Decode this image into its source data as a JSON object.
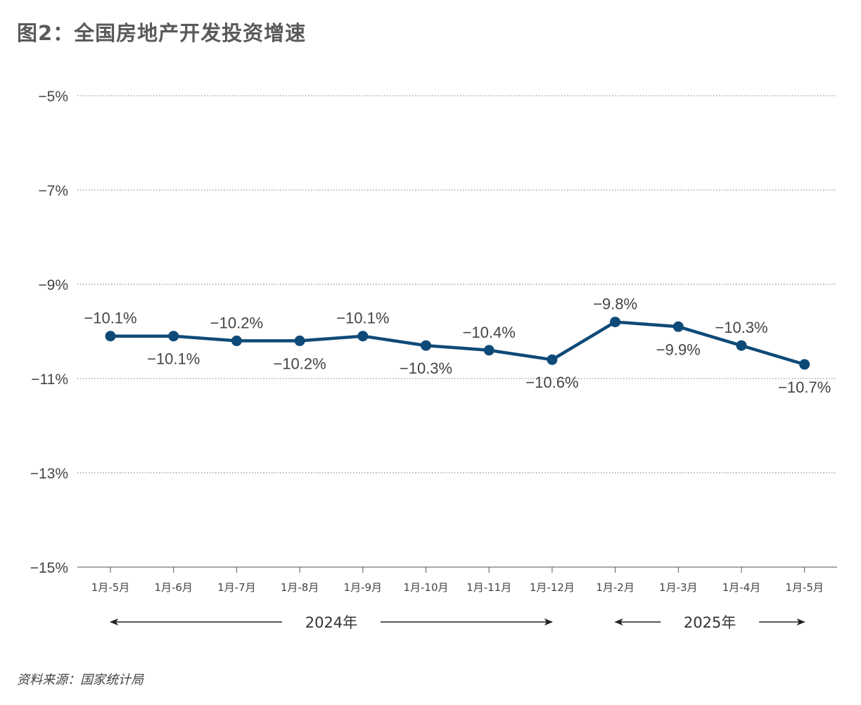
{
  "page_title": "图2：全国房地产开发投资增速",
  "source": "资料来源：国家统计局",
  "colors": {
    "line": "#0e4a78",
    "grid": "#666666",
    "text": "#444444"
  },
  "chart_data": {
    "type": "line",
    "title": "图2：全国房地产开发投资增速",
    "xlabel": "",
    "ylabel": "",
    "categories": [
      "1月-5月",
      "1月-6月",
      "1月-7月",
      "1月-8月",
      "1月-9月",
      "1月-10月",
      "1月-11月",
      "1月-12月",
      "1月-2月",
      "1月-3月",
      "1月-4月",
      "1月-5月"
    ],
    "series": [
      {
        "values": [
          -10.1,
          -10.1,
          -10.2,
          -10.2,
          -10.1,
          -10.3,
          -10.4,
          -10.6,
          -9.8,
          -9.9,
          -10.3,
          -10.7
        ]
      }
    ],
    "data_labels": [
      "−10.1%",
      "−10.1%",
      "−10.2%",
      "−10.2%",
      "−10.1%",
      "−10.3%",
      "−10.4%",
      "−10.6%",
      "−9.8%",
      "−9.9%",
      "−10.3%",
      "−10.7%"
    ],
    "label_positions": [
      "above",
      "below",
      "above",
      "below",
      "above",
      "below",
      "above",
      "below",
      "above",
      "below",
      "above",
      "below"
    ],
    "ylim": [
      -15,
      -5
    ],
    "yticks": [
      -5,
      -7,
      -9,
      -11,
      -13,
      -15
    ],
    "ytick_labels": [
      "−5%",
      "−7%",
      "−9%",
      "−11%",
      "−13%",
      "−15%"
    ],
    "grid": "horizontal-dotted",
    "periods": [
      {
        "label": "2024年",
        "from_index": 0,
        "to_index": 7
      },
      {
        "label": "2025年",
        "from_index": 8,
        "to_index": 11
      }
    ]
  }
}
